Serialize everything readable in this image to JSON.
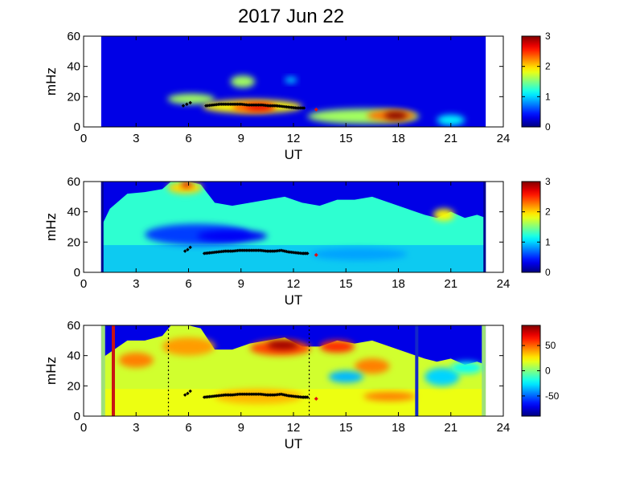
{
  "title": "2017 Jun 22",
  "chart_data": [
    {
      "type": "heatmap",
      "xlabel": "UT",
      "ylabel": "mHz",
      "xlim": [
        0,
        24
      ],
      "ylim": [
        0,
        60
      ],
      "xticks": [
        "0",
        "3",
        "6",
        "9",
        "12",
        "15",
        "18",
        "21",
        "24"
      ],
      "yticks": [
        "0",
        "20",
        "40",
        "60"
      ],
      "colorbar": {
        "range": [
          0,
          3
        ],
        "ticks": [
          "0",
          "1",
          "2",
          "3"
        ]
      },
      "data_extent": [
        1,
        23
      ],
      "blobs": [
        {
          "x0": 4.8,
          "x1": 7.5,
          "y0": 15,
          "y1": 22,
          "v": 1.6
        },
        {
          "x0": 6.8,
          "x1": 12.5,
          "y0": 9,
          "y1": 18,
          "v": 1.9
        },
        {
          "x0": 8.5,
          "x1": 10.8,
          "y0": 10,
          "y1": 16,
          "v": 2.4
        },
        {
          "x0": 9.3,
          "x1": 11.0,
          "y0": 11,
          "y1": 15,
          "v": 2.7
        },
        {
          "x0": 8.4,
          "x1": 9.8,
          "y0": 26,
          "y1": 34,
          "v": 1.6
        },
        {
          "x0": 11.5,
          "x1": 12.2,
          "y0": 29,
          "y1": 33,
          "v": 1.0
        },
        {
          "x0": 12.8,
          "x1": 19.2,
          "y0": 2,
          "y1": 12,
          "v": 1.6
        },
        {
          "x0": 16.2,
          "x1": 19.0,
          "y0": 4,
          "y1": 11,
          "v": 2.3
        },
        {
          "x0": 17.2,
          "x1": 18.5,
          "y0": 5,
          "y1": 10,
          "v": 3.0
        },
        {
          "x0": 20.2,
          "x1": 21.8,
          "y0": 1,
          "y1": 8,
          "v": 1.1
        }
      ]
    },
    {
      "type": "heatmap",
      "xlabel": "UT",
      "ylabel": "mHz",
      "xlim": [
        0,
        24
      ],
      "ylim": [
        0,
        60
      ],
      "xticks": [
        "0",
        "3",
        "6",
        "9",
        "12",
        "15",
        "18",
        "21",
        "24"
      ],
      "yticks": [
        "0",
        "20",
        "40",
        "60"
      ],
      "colorbar": {
        "range": [
          0,
          3
        ],
        "ticks": [
          "0",
          "1",
          "2",
          "3"
        ]
      },
      "data_extent": [
        1,
        23
      ],
      "top_profile": [
        [
          1,
          30
        ],
        [
          1.5,
          42
        ],
        [
          2.5,
          52
        ],
        [
          3.5,
          53
        ],
        [
          4.5,
          55
        ],
        [
          5,
          60
        ],
        [
          6,
          60
        ],
        [
          6.7,
          58
        ],
        [
          7.5,
          46
        ],
        [
          8.5,
          44
        ],
        [
          9.5,
          46
        ],
        [
          10.5,
          48
        ],
        [
          11.5,
          50
        ],
        [
          12.5,
          46
        ],
        [
          13.5,
          44
        ],
        [
          14.5,
          48
        ],
        [
          15.5,
          48
        ],
        [
          16.5,
          50
        ],
        [
          17.5,
          46
        ],
        [
          18.5,
          42
        ],
        [
          19.5,
          38
        ],
        [
          20.2,
          36
        ],
        [
          21,
          40
        ],
        [
          21.8,
          36
        ],
        [
          22.5,
          38
        ],
        [
          23,
          36
        ]
      ],
      "blobs": [
        {
          "x0": 3.5,
          "x1": 9.5,
          "y0": 18,
          "y1": 32,
          "v": 0.55
        },
        {
          "x0": 6.5,
          "x1": 10.5,
          "y0": 20,
          "y1": 28,
          "v": 0.35
        },
        {
          "x0": 13,
          "x1": 18.5,
          "y0": 8,
          "y1": 16,
          "v": 0.85
        },
        {
          "x0": 4.8,
          "x1": 6.8,
          "y0": 52,
          "y1": 60,
          "v": 2.0
        },
        {
          "x0": 5.6,
          "x1": 6.2,
          "y0": 56,
          "y1": 60,
          "v": 2.7
        },
        {
          "x0": 20,
          "x1": 21.2,
          "y0": 34,
          "y1": 42,
          "v": 1.9
        }
      ]
    },
    {
      "type": "heatmap",
      "xlabel": "UT",
      "ylabel": "mHz",
      "xlim": [
        0,
        24
      ],
      "ylim": [
        0,
        60
      ],
      "xticks": [
        "0",
        "3",
        "6",
        "9",
        "12",
        "15",
        "18",
        "21",
        "24"
      ],
      "yticks": [
        "0",
        "20",
        "40",
        "60"
      ],
      "colorbar": {
        "range": [
          -90,
          90
        ],
        "ticks": [
          "50",
          "0",
          "-50"
        ],
        "tick_values": [
          50,
          0,
          -50
        ]
      },
      "data_extent": [
        1,
        23
      ],
      "top_profile": [
        [
          1,
          38
        ],
        [
          1.5,
          42
        ],
        [
          2.5,
          50
        ],
        [
          3.5,
          50
        ],
        [
          4.5,
          53
        ],
        [
          5,
          60
        ],
        [
          6,
          60
        ],
        [
          6.7,
          58
        ],
        [
          7.5,
          44
        ],
        [
          8.5,
          44
        ],
        [
          9.5,
          48
        ],
        [
          10.5,
          50
        ],
        [
          11.5,
          52
        ],
        [
          12.5,
          46
        ],
        [
          13.5,
          46
        ],
        [
          14.5,
          50
        ],
        [
          15.5,
          48
        ],
        [
          16.5,
          50
        ],
        [
          17.5,
          46
        ],
        [
          18.5,
          42
        ],
        [
          19.5,
          38
        ],
        [
          20.2,
          36
        ],
        [
          21,
          38
        ],
        [
          21.8,
          34
        ],
        [
          22.5,
          36
        ],
        [
          23,
          34
        ]
      ],
      "blobs": [
        {
          "x0": 9.5,
          "x1": 13,
          "y0": 40,
          "y1": 50,
          "v": 55
        },
        {
          "x0": 10.5,
          "x1": 12.3,
          "y0": 44,
          "y1": 50,
          "v": 85
        },
        {
          "x0": 4.5,
          "x1": 7.5,
          "y0": 40,
          "y1": 52,
          "v": 40
        },
        {
          "x0": 13.5,
          "x1": 15.5,
          "y0": 42,
          "y1": 50,
          "v": 60
        },
        {
          "x0": 15.5,
          "x1": 17.5,
          "y0": 28,
          "y1": 38,
          "v": 45
        },
        {
          "x0": 2,
          "x1": 4,
          "y0": 32,
          "y1": 42,
          "v": 45
        },
        {
          "x0": 14,
          "x1": 16,
          "y0": 22,
          "y1": 30,
          "v": -35
        },
        {
          "x0": 19.5,
          "x1": 21.5,
          "y0": 20,
          "y1": 32,
          "v": -30
        },
        {
          "x0": 7.5,
          "x1": 12.5,
          "y0": 8,
          "y1": 18,
          "v": 35
        },
        {
          "x0": 16,
          "x1": 19,
          "y0": 10,
          "y1": 16,
          "v": 45
        },
        {
          "x0": 21,
          "x1": 22.8,
          "y0": 28,
          "y1": 36,
          "v": -20
        }
      ],
      "vertical_lines": [
        {
          "x": 1.7,
          "color": "#c81414",
          "width": 4
        },
        {
          "x": 19.05,
          "color": "#1428c8",
          "width": 4
        }
      ],
      "dotted_lines": [
        4.85,
        12.9
      ]
    }
  ],
  "overlay_points": {
    "series_a": [
      [
        5.8,
        14
      ],
      [
        5.95,
        15
      ],
      [
        6.1,
        16.5
      ]
    ],
    "series_b": [
      [
        6.9,
        12.5
      ],
      [
        7.3,
        13
      ],
      [
        7.7,
        13.5
      ],
      [
        8.1,
        14
      ],
      [
        8.5,
        14
      ],
      [
        8.9,
        14.5
      ],
      [
        9.3,
        14.5
      ],
      [
        9.7,
        14.5
      ],
      [
        10.1,
        14.5
      ],
      [
        10.5,
        14
      ],
      [
        10.9,
        14
      ],
      [
        11.3,
        14.5
      ],
      [
        11.7,
        13.5
      ],
      [
        12.1,
        13
      ],
      [
        12.5,
        12.5
      ],
      [
        12.8,
        12.5
      ]
    ],
    "series_a_top": [
      [
        5.7,
        14
      ],
      [
        5.9,
        15
      ],
      [
        6.1,
        16
      ]
    ],
    "series_b_top": [
      [
        7.0,
        14
      ],
      [
        7.4,
        14.5
      ],
      [
        7.8,
        15
      ],
      [
        8.2,
        15
      ],
      [
        8.6,
        15
      ],
      [
        9.0,
        15
      ],
      [
        9.4,
        14.5
      ],
      [
        9.8,
        14.5
      ],
      [
        10.2,
        14.5
      ],
      [
        10.6,
        14
      ],
      [
        11.0,
        14
      ],
      [
        11.4,
        13.5
      ],
      [
        11.8,
        13
      ],
      [
        12.2,
        12.5
      ],
      [
        12.6,
        12.5
      ]
    ],
    "red_point": [
      13.3,
      11.5
    ]
  }
}
